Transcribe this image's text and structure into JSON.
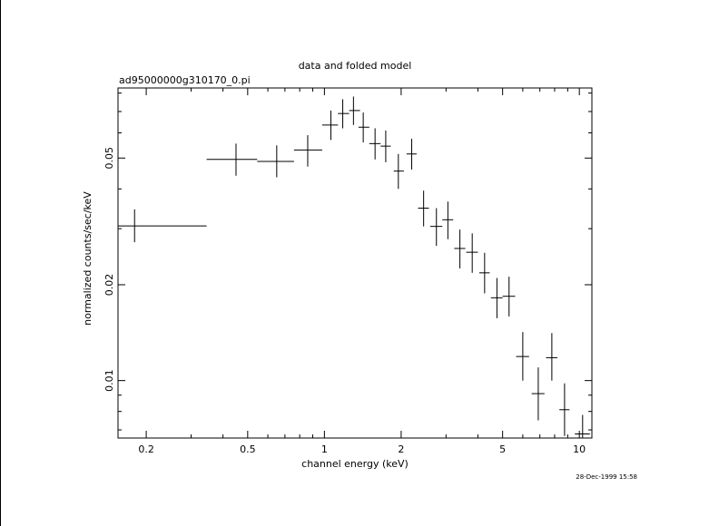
{
  "chart_data": {
    "type": "scatter",
    "title": "data and folded model",
    "subtitle": "ad95000000g310170_0.pi",
    "xlabel": "channel energy (keV)",
    "ylabel": "normalized counts/sec/keV",
    "timestamp": "28-Dec-1999 15:58",
    "x_scale": "log",
    "y_scale": "log",
    "xlim": [
      0.155,
      11.2
    ],
    "ylim": [
      0.0066,
      0.083
    ],
    "x_ticks": [
      {
        "value": 0.2,
        "label": "0.2"
      },
      {
        "value": 0.5,
        "label": "0.5"
      },
      {
        "value": 1,
        "label": "1"
      },
      {
        "value": 2,
        "label": "2"
      },
      {
        "value": 5,
        "label": "5"
      },
      {
        "value": 10,
        "label": "10"
      }
    ],
    "y_ticks": [
      {
        "value": 0.01,
        "label": "0.01"
      },
      {
        "value": 0.02,
        "label": "0.02"
      },
      {
        "value": 0.05,
        "label": "0.05"
      }
    ],
    "grid": false,
    "series": [
      {
        "marker": "cross",
        "color": "#000000",
        "points": [
          {
            "x": 0.18,
            "x_lo": 0.155,
            "x_hi": 0.345,
            "y": 0.0306,
            "y_lo": 0.0272,
            "y_hi": 0.0345
          },
          {
            "x": 0.45,
            "x_lo": 0.345,
            "x_hi": 0.545,
            "y": 0.0495,
            "y_lo": 0.044,
            "y_hi": 0.0555
          },
          {
            "x": 0.65,
            "x_lo": 0.545,
            "x_hi": 0.76,
            "y": 0.0488,
            "y_lo": 0.0435,
            "y_hi": 0.0548
          },
          {
            "x": 0.86,
            "x_lo": 0.76,
            "x_hi": 0.98,
            "y": 0.053,
            "y_lo": 0.047,
            "y_hi": 0.059
          },
          {
            "x": 1.06,
            "x_lo": 0.98,
            "x_hi": 1.13,
            "y": 0.0635,
            "y_lo": 0.057,
            "y_hi": 0.0705
          },
          {
            "x": 1.18,
            "x_lo": 1.13,
            "x_hi": 1.25,
            "y": 0.069,
            "y_lo": 0.062,
            "y_hi": 0.0765
          },
          {
            "x": 1.3,
            "x_lo": 1.25,
            "x_hi": 1.38,
            "y": 0.0705,
            "y_lo": 0.0635,
            "y_hi": 0.078
          },
          {
            "x": 1.42,
            "x_lo": 1.36,
            "x_hi": 1.5,
            "y": 0.0625,
            "y_lo": 0.056,
            "y_hi": 0.0695
          },
          {
            "x": 1.58,
            "x_lo": 1.5,
            "x_hi": 1.66,
            "y": 0.0555,
            "y_lo": 0.0495,
            "y_hi": 0.062
          },
          {
            "x": 1.74,
            "x_lo": 1.66,
            "x_hi": 1.82,
            "y": 0.0545,
            "y_lo": 0.0485,
            "y_hi": 0.061
          },
          {
            "x": 1.95,
            "x_lo": 1.87,
            "x_hi": 2.05,
            "y": 0.0455,
            "y_lo": 0.04,
            "y_hi": 0.0515
          },
          {
            "x": 2.2,
            "x_lo": 2.1,
            "x_hi": 2.3,
            "y": 0.0515,
            "y_lo": 0.046,
            "y_hi": 0.0575
          },
          {
            "x": 2.45,
            "x_lo": 2.33,
            "x_hi": 2.57,
            "y": 0.0348,
            "y_lo": 0.0305,
            "y_hi": 0.0395
          },
          {
            "x": 2.75,
            "x_lo": 2.6,
            "x_hi": 2.9,
            "y": 0.0305,
            "y_lo": 0.0265,
            "y_hi": 0.0348
          },
          {
            "x": 3.05,
            "x_lo": 2.9,
            "x_hi": 3.2,
            "y": 0.032,
            "y_lo": 0.0278,
            "y_hi": 0.0365
          },
          {
            "x": 3.4,
            "x_lo": 3.23,
            "x_hi": 3.57,
            "y": 0.026,
            "y_lo": 0.0225,
            "y_hi": 0.0298
          },
          {
            "x": 3.8,
            "x_lo": 3.6,
            "x_hi": 4.0,
            "y": 0.0253,
            "y_lo": 0.0218,
            "y_hi": 0.029
          },
          {
            "x": 4.25,
            "x_lo": 4.05,
            "x_hi": 4.45,
            "y": 0.0218,
            "y_lo": 0.0188,
            "y_hi": 0.0252
          },
          {
            "x": 4.75,
            "x_lo": 4.5,
            "x_hi": 5.0,
            "y": 0.0182,
            "y_lo": 0.0157,
            "y_hi": 0.021
          },
          {
            "x": 5.3,
            "x_lo": 5.0,
            "x_hi": 5.6,
            "y": 0.0184,
            "y_lo": 0.0159,
            "y_hi": 0.0212
          },
          {
            "x": 6.0,
            "x_lo": 5.65,
            "x_hi": 6.35,
            "y": 0.0119,
            "y_lo": 0.01,
            "y_hi": 0.0142
          },
          {
            "x": 6.9,
            "x_lo": 6.5,
            "x_hi": 7.3,
            "y": 0.0091,
            "y_lo": 0.0075,
            "y_hi": 0.011
          },
          {
            "x": 7.8,
            "x_lo": 7.4,
            "x_hi": 8.2,
            "y": 0.0118,
            "y_lo": 0.01,
            "y_hi": 0.0141
          },
          {
            "x": 8.75,
            "x_lo": 8.35,
            "x_hi": 9.15,
            "y": 0.0081,
            "y_lo": 0.0067,
            "y_hi": 0.0098
          },
          {
            "x": 10.3,
            "x_lo": 9.6,
            "x_hi": 11.0,
            "y": 0.0068,
            "y_lo": 0.0066,
            "y_hi": 0.0078
          }
        ]
      }
    ]
  }
}
